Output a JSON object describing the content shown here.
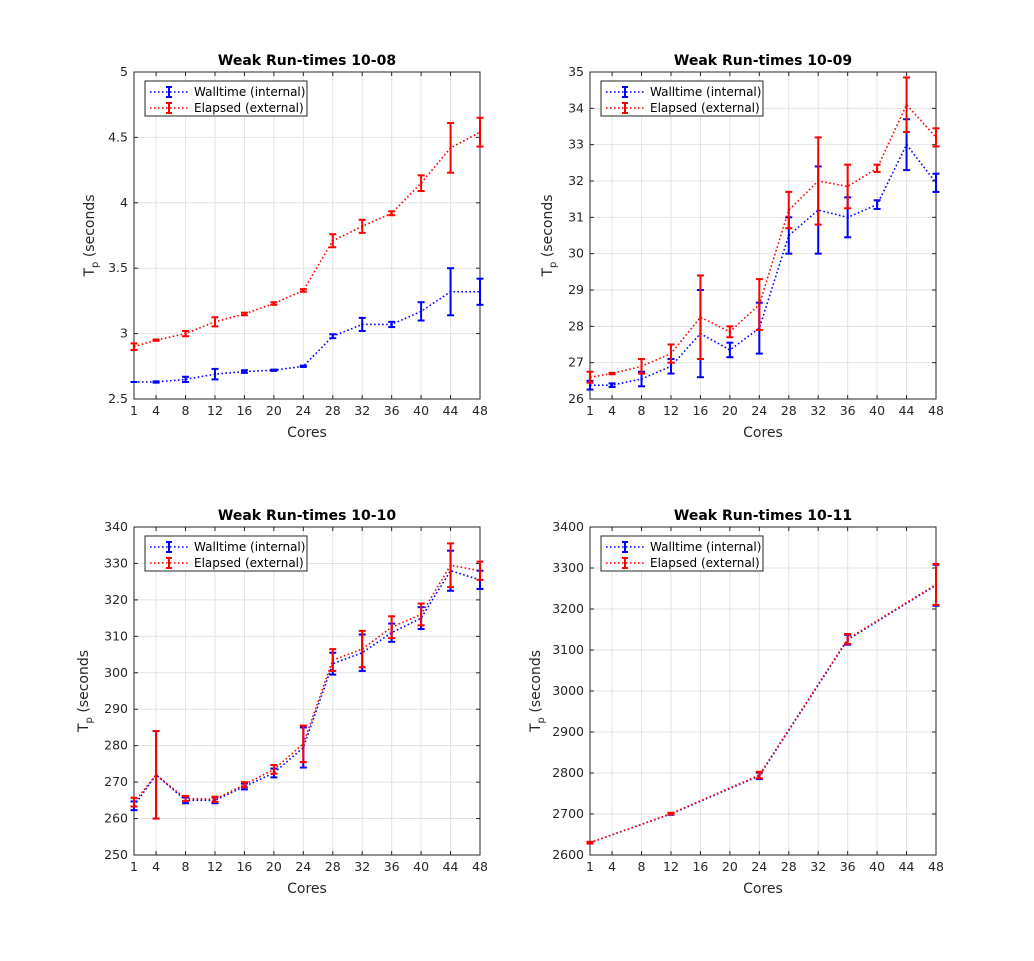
{
  "chart_data": [
    {
      "type": "line",
      "title": "Weak Run-times 10-08",
      "xlabel": "Cores",
      "ylabel_main": "T",
      "ylabel_sub": "p",
      "ylabel_rest": " (seconds",
      "x": [
        1,
        4,
        8,
        12,
        16,
        20,
        24,
        28,
        32,
        36,
        40,
        44,
        48
      ],
      "xticks": [
        "1",
        "4",
        "8",
        "12",
        "16",
        "20",
        "24",
        "28",
        "32",
        "36",
        "40",
        "44",
        "48"
      ],
      "yticks": [
        "2.5",
        "3",
        "3.5",
        "4",
        "4.5",
        "5"
      ],
      "ylim": [
        2.5,
        5
      ],
      "grid": true,
      "legend_position": "top-left",
      "series": [
        {
          "name": "Walltime (internal)",
          "color": "#0000ff",
          "x": [
            1,
            4,
            8,
            12,
            16,
            20,
            24,
            28,
            32,
            36,
            40,
            44,
            48
          ],
          "values": [
            2.63,
            2.63,
            2.65,
            2.69,
            2.71,
            2.72,
            2.75,
            2.98,
            3.07,
            3.07,
            3.17,
            3.32,
            3.32
          ],
          "errors": [
            0.0,
            0.005,
            0.02,
            0.04,
            0.01,
            0.005,
            0.005,
            0.015,
            0.05,
            0.02,
            0.07,
            0.18,
            0.1
          ]
        },
        {
          "name": "Elapsed (external)",
          "color": "#ff0000",
          "x": [
            1,
            4,
            8,
            12,
            16,
            20,
            24,
            28,
            32,
            36,
            40,
            44,
            48
          ],
          "values": [
            2.9,
            2.95,
            3.0,
            3.09,
            3.15,
            3.23,
            3.33,
            3.71,
            3.82,
            3.92,
            4.15,
            4.42,
            4.54
          ],
          "errors": [
            0.025,
            0.005,
            0.02,
            0.035,
            0.01,
            0.01,
            0.01,
            0.05,
            0.05,
            0.015,
            0.06,
            0.19,
            0.11
          ]
        }
      ]
    },
    {
      "type": "line",
      "title": "Weak Run-times 10-09",
      "xlabel": "Cores",
      "ylabel_main": "T",
      "ylabel_sub": "p",
      "ylabel_rest": " (seconds",
      "x": [
        1,
        4,
        8,
        12,
        16,
        20,
        24,
        28,
        32,
        36,
        40,
        44,
        48
      ],
      "xticks": [
        "1",
        "4",
        "8",
        "12",
        "16",
        "20",
        "24",
        "28",
        "32",
        "36",
        "40",
        "44",
        "48"
      ],
      "yticks": [
        "26",
        "27",
        "28",
        "29",
        "30",
        "31",
        "32",
        "33",
        "34",
        "35"
      ],
      "ylim": [
        26,
        35
      ],
      "grid": true,
      "legend_position": "top-left",
      "series": [
        {
          "name": "Walltime (internal)",
          "color": "#0000ff",
          "x": [
            1,
            4,
            8,
            12,
            16,
            20,
            24,
            28,
            32,
            36,
            40,
            44,
            48
          ],
          "values": [
            26.38,
            26.38,
            26.55,
            26.9,
            27.8,
            27.35,
            27.95,
            30.5,
            31.2,
            31.0,
            31.35,
            33.0,
            31.95
          ],
          "errors": [
            0.12,
            0.05,
            0.2,
            0.2,
            1.2,
            0.2,
            0.7,
            0.5,
            1.2,
            0.55,
            0.12,
            0.7,
            0.25
          ]
        },
        {
          "name": "Elapsed (external)",
          "color": "#ff0000",
          "x": [
            1,
            4,
            8,
            12,
            16,
            20,
            24,
            28,
            32,
            36,
            40,
            44,
            48
          ],
          "values": [
            26.6,
            26.7,
            26.9,
            27.25,
            28.25,
            27.85,
            28.6,
            31.2,
            32.0,
            31.85,
            32.35,
            34.1,
            33.2
          ],
          "errors": [
            0.15,
            0.02,
            0.2,
            0.25,
            1.15,
            0.15,
            0.7,
            0.5,
            1.2,
            0.6,
            0.1,
            0.75,
            0.25
          ]
        }
      ]
    },
    {
      "type": "line",
      "title": "Weak Run-times 10-10",
      "xlabel": "Cores",
      "ylabel_main": "T",
      "ylabel_sub": "p",
      "ylabel_rest": " (seconds",
      "x": [
        1,
        4,
        8,
        12,
        16,
        20,
        24,
        28,
        32,
        36,
        40,
        44,
        48
      ],
      "xticks": [
        "1",
        "4",
        "8",
        "12",
        "16",
        "20",
        "24",
        "28",
        "32",
        "36",
        "40",
        "44",
        "48"
      ],
      "yticks": [
        "250",
        "260",
        "270",
        "280",
        "290",
        "300",
        "310",
        "320",
        "330",
        "340"
      ],
      "ylim": [
        250,
        340
      ],
      "grid": true,
      "legend_position": "top-left",
      "series": [
        {
          "name": "Walltime (internal)",
          "color": "#0000ff",
          "x": [
            1,
            4,
            8,
            12,
            16,
            20,
            24,
            28,
            32,
            36,
            40,
            44,
            48
          ],
          "values": [
            263.5,
            272,
            265,
            265,
            268.8,
            272.5,
            279.5,
            302.5,
            305.5,
            311,
            315,
            328,
            325.5
          ],
          "errors": [
            1.2,
            12,
            0.8,
            0.8,
            0.8,
            1.2,
            5.5,
            3,
            5,
            2.5,
            3,
            5.5,
            2.5
          ]
        },
        {
          "name": "Elapsed (external)",
          "color": "#ff0000",
          "x": [
            1,
            4,
            8,
            12,
            16,
            20,
            24,
            28,
            32,
            36,
            40,
            44,
            48
          ],
          "values": [
            264.5,
            272,
            265.5,
            265.3,
            269.3,
            273.5,
            280.5,
            303.5,
            306.5,
            312.5,
            316,
            329.5,
            328
          ],
          "errors": [
            1.2,
            12,
            0.7,
            0.7,
            0.7,
            1.2,
            5,
            3,
            5,
            3,
            3,
            6,
            2.5
          ]
        }
      ]
    },
    {
      "type": "line",
      "title": "Weak Run-times 10-11",
      "xlabel": "Cores",
      "ylabel_main": "T",
      "ylabel_sub": "p",
      "ylabel_rest": " (seconds",
      "x": [
        1,
        4,
        8,
        12,
        16,
        20,
        24,
        28,
        32,
        36,
        40,
        44,
        48
      ],
      "xticks": [
        "1",
        "4",
        "8",
        "12",
        "16",
        "20",
        "24",
        "28",
        "32",
        "36",
        "40",
        "44",
        "48"
      ],
      "yticks": [
        "2600",
        "2700",
        "2800",
        "2900",
        "3000",
        "3100",
        "3200",
        "3300",
        "3400"
      ],
      "ylim": [
        2600,
        3400
      ],
      "grid": true,
      "legend_position": "top-left",
      "series": [
        {
          "name": "Walltime (internal)",
          "color": "#0000ff",
          "x": [
            1,
            12,
            24,
            36,
            48
          ],
          "values": [
            2630,
            2700,
            2793,
            3125,
            3258
          ],
          "errors": [
            2,
            2,
            8,
            12,
            50
          ]
        },
        {
          "name": "Elapsed (external)",
          "color": "#ff0000",
          "x": [
            1,
            12,
            24,
            36,
            48
          ],
          "values": [
            2630,
            2701,
            2795,
            3127,
            3260
          ],
          "errors": [
            2,
            2,
            8,
            12,
            50
          ]
        }
      ]
    }
  ]
}
